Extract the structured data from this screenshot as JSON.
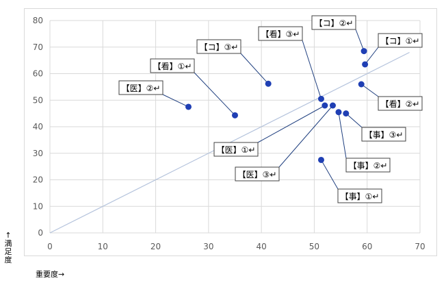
{
  "chart_data": {
    "type": "scatter",
    "xlabel": "重要度→",
    "ylabel": "↑満足度",
    "xlim": [
      0,
      70
    ],
    "ylim": [
      0,
      80
    ],
    "x_ticks": [
      0,
      10,
      20,
      30,
      40,
      50,
      60,
      70
    ],
    "y_ticks": [
      0,
      10,
      20,
      30,
      40,
      50,
      60,
      70,
      80
    ],
    "grid": true,
    "reference_line": {
      "from": [
        0,
        0
      ],
      "to": [
        68,
        68
      ]
    },
    "colors": {
      "point": "#1f3fb4",
      "grid": "#d9d9d9",
      "diagonal": "#b4c3dc",
      "callout_line": "#1f3f7f"
    },
    "points": [
      {
        "label": "【医】②↵",
        "x": 26.2,
        "y": 47.5
      },
      {
        "label": "【看】①↵",
        "x": 35.0,
        "y": 44.3
      },
      {
        "label": "【コ】③↵",
        "x": 41.3,
        "y": 56.2
      },
      {
        "label": "【看】③↵",
        "x": 51.3,
        "y": 50.5
      },
      {
        "label": "【医】①↵",
        "x": 52.0,
        "y": 48.0
      },
      {
        "label": "【医】③↵",
        "x": 53.5,
        "y": 48.0
      },
      {
        "label": "【事】②↵",
        "x": 54.6,
        "y": 45.5
      },
      {
        "label": "【事】③↵",
        "x": 56.0,
        "y": 45.0
      },
      {
        "label": "【事】①↵",
        "x": 51.3,
        "y": 27.5
      },
      {
        "label": "【看】②↵",
        "x": 58.9,
        "y": 56.0
      },
      {
        "label": "【コ】②↵",
        "x": 59.4,
        "y": 68.5
      },
      {
        "label": "【コ】①↵",
        "x": 59.6,
        "y": 63.5
      }
    ]
  }
}
